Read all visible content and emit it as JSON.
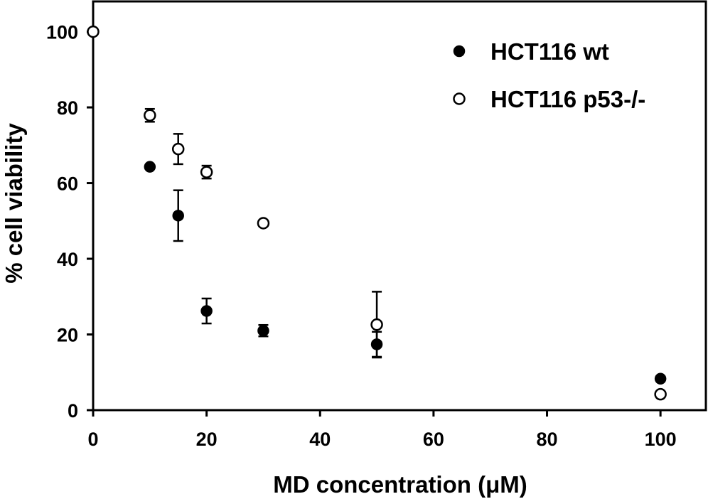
{
  "chart_data": {
    "type": "scatter",
    "xlabel": "MD concentration (μM)",
    "ylabel": "% cell viability",
    "xlim": [
      0,
      108
    ],
    "ylim": [
      0,
      108
    ],
    "x_ticks": [
      "0",
      "20",
      "40",
      "60",
      "80",
      "100"
    ],
    "y_ticks": [
      "0",
      "20",
      "40",
      "60",
      "80",
      "100"
    ],
    "grid": false,
    "legend_position": "top-right",
    "series": [
      {
        "name": "HCT116 wt",
        "marker": "filled-circle",
        "color": "#000000",
        "points": [
          {
            "x": 0,
            "y": 100,
            "err": 0
          },
          {
            "x": 10,
            "y": 64.3,
            "err": 0
          },
          {
            "x": 15,
            "y": 51.4,
            "err": 6.7
          },
          {
            "x": 20,
            "y": 26.2,
            "err": 3.3
          },
          {
            "x": 30,
            "y": 21.0,
            "err": 1.5
          },
          {
            "x": 50,
            "y": 17.4,
            "err": 3.3
          },
          {
            "x": 100,
            "y": 8.3,
            "err": 0
          }
        ]
      },
      {
        "name": "HCT116 p53-/-",
        "marker": "open-circle",
        "color": "#000000",
        "points": [
          {
            "x": 0,
            "y": 100,
            "err": 0
          },
          {
            "x": 10,
            "y": 77.9,
            "err": 1.7
          },
          {
            "x": 15,
            "y": 69.0,
            "err": 4.0
          },
          {
            "x": 20,
            "y": 62.9,
            "err": 1.7
          },
          {
            "x": 30,
            "y": 49.4,
            "err": 0
          },
          {
            "x": 50,
            "y": 22.6,
            "err": 8.7
          },
          {
            "x": 100,
            "y": 4.2,
            "err": 0
          }
        ]
      }
    ]
  }
}
